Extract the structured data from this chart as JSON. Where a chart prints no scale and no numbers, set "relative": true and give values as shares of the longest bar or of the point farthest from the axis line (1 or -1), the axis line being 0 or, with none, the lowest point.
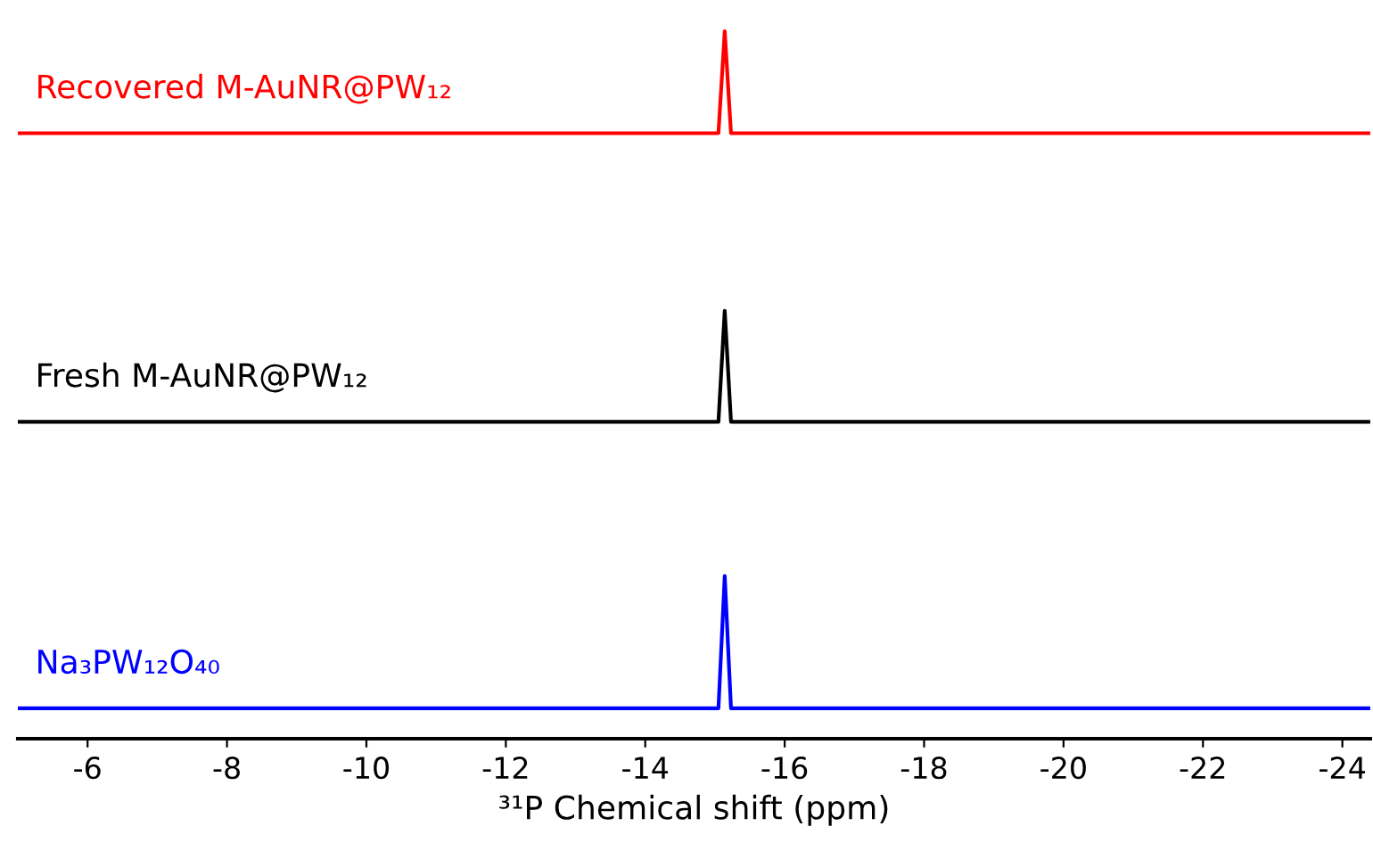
{
  "chart_data": {
    "type": "line",
    "relative": true,
    "xlabel": "³¹P Chemical shift (ppm)",
    "xlim": [
      -5.0,
      -24.4
    ],
    "xticks": [
      {
        "value": -6,
        "label": "-6"
      },
      {
        "value": -8,
        "label": "-8"
      },
      {
        "value": -10,
        "label": "-10"
      },
      {
        "value": -12,
        "label": "-12"
      },
      {
        "value": -14,
        "label": "-14"
      },
      {
        "value": -16,
        "label": "-16"
      },
      {
        "value": -18,
        "label": "-18"
      },
      {
        "value": -20,
        "label": "-20"
      },
      {
        "value": -22,
        "label": "-22"
      },
      {
        "value": -24,
        "label": "-24"
      }
    ],
    "tick_labels": "x",
    "grid": false,
    "legend": false,
    "marker": "none",
    "line_style": "solid",
    "series": [
      {
        "name": "Recovered M-AuNR@PW₁₂",
        "color": "#ff0000",
        "x": [
          -5.0,
          -15.05,
          -15.14,
          -15.23,
          -24.4
        ],
        "values": [
          0.856,
          0.856,
          1.0,
          0.856,
          0.856
        ]
      },
      {
        "name": "Fresh M-AuNR@PW₁₂",
        "color": "#000000",
        "x": [
          -5.0,
          -15.05,
          -15.14,
          -15.23,
          -24.4
        ],
        "values": [
          0.448,
          0.448,
          0.605,
          0.448,
          0.448
        ]
      },
      {
        "name": "Na₃PW₁₂O₄₀",
        "color": "#0000ff",
        "x": [
          -5.0,
          -15.05,
          -15.14,
          -15.23,
          -24.4
        ],
        "values": [
          0.043,
          0.043,
          0.23,
          0.043,
          0.043
        ]
      }
    ]
  }
}
